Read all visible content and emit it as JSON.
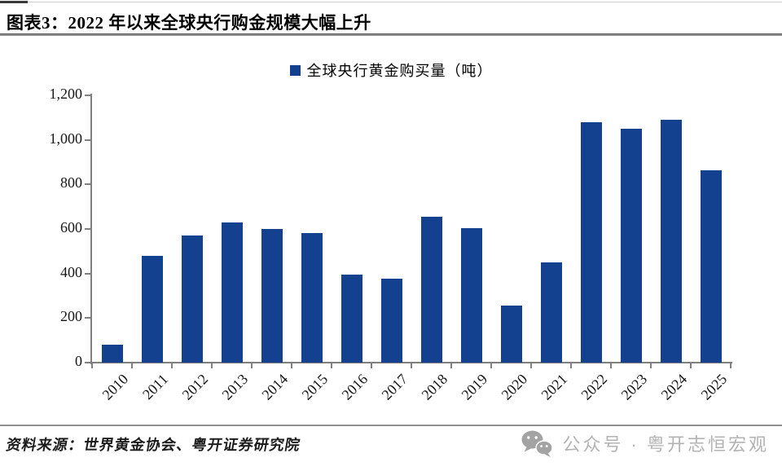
{
  "header": {
    "title": "图表3：2022 年以来全球央行购金规模大幅上升"
  },
  "legend": {
    "label": "全球央行黄金购买量（吨）"
  },
  "chart_data": {
    "type": "bar",
    "title": "全球央行黄金购买量（吨）",
    "categories": [
      "2010",
      "2011",
      "2012",
      "2013",
      "2014",
      "2015",
      "2016",
      "2017",
      "2018",
      "2019",
      "2020",
      "2021",
      "2022",
      "2023",
      "2024",
      "2025"
    ],
    "values": [
      79,
      481,
      569,
      630,
      601,
      580,
      395,
      378,
      656,
      605,
      255,
      450,
      1080,
      1050,
      1090,
      862
    ],
    "xlabel": "",
    "ylabel": "",
    "ylim": [
      0,
      1200
    ],
    "ytick_interval": 200,
    "ytick_labels": [
      "0",
      "200",
      "400",
      "600",
      "800",
      "1,000",
      "1,200"
    ],
    "grid": false,
    "legend_position": "top-center",
    "bar_color": "#14418f",
    "axis_color": "#808080"
  },
  "footer": {
    "source": "资料来源：世界黄金协会、粤开证券研究院",
    "watermark": "公众号 · 粤开志恒宏观"
  }
}
